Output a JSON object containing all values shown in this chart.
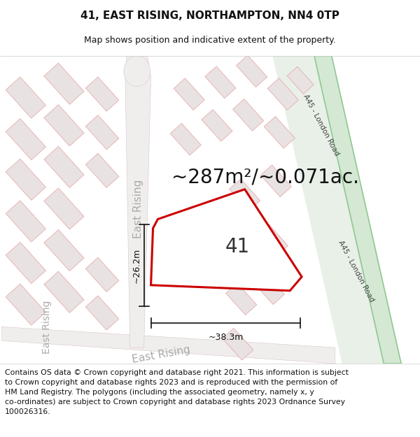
{
  "title_line1": "41, EAST RISING, NORTHAMPTON, NN4 0TP",
  "title_line2": "Map shows position and indicative extent of the property.",
  "area_label": "~287m²/~0.071ac.",
  "plot_label": "41",
  "dim_vertical": "~26.2m",
  "dim_horizontal": "~38.3m",
  "road_label1": "A45 - London Road",
  "road_label2": "A45 - London Road",
  "footer_text1": "Contains OS data © Crown copyright and database right 2021. This information is subject",
  "footer_text2": "to Crown copyright and database rights 2023 and is reproduced with the permission of",
  "footer_text3": "HM Land Registry. The polygons (including the associated geometry, namely x, y",
  "footer_text4": "co-ordinates) are subject to Crown copyright and database rights 2023 Ordnance Survey",
  "footer_text5": "100026316.",
  "bg_color": "#f8f5f5",
  "house_fill": "#e8e2e2",
  "house_stroke": "#e8a0a0",
  "street_fill": "#f0eded",
  "road_green_fill": "#d4e8d4",
  "road_green_stroke": "#90c890",
  "road_bg_fill": "#e8e8e8",
  "plot_stroke": "#cc0000",
  "plot_fill": "#ffffff",
  "dim_color": "#111111",
  "street_label_color": "#aaaaaa",
  "road_label_color": "#444444",
  "title_color": "#111111"
}
